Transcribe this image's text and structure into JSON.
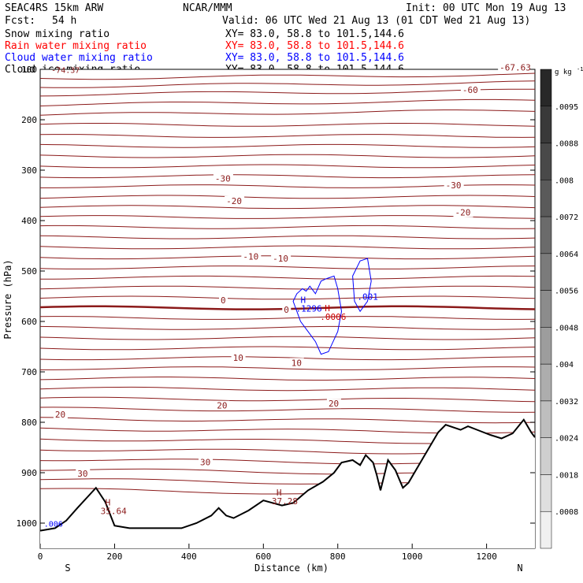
{
  "header": {
    "model": "SEAC4RS 15km ARW",
    "org": "NCAR/MMM",
    "init": "Init: 00 UTC Mon 19 Aug 13",
    "fcst_label": "Fcst:",
    "fcst_value": "54 h",
    "valid": "Valid: 06 UTC Wed 21 Aug 13 (01 CDT Wed 21 Aug 13)"
  },
  "fields": [
    {
      "name": "Snow mixing ratio",
      "xy": "XY=  83.0, 58.8 to 101.5,144.6",
      "color": "#000000"
    },
    {
      "name": "Rain water mixing ratio",
      "xy": "XY=  83.0, 58.8 to 101.5,144.6",
      "color": "#ff0000"
    },
    {
      "name": "Cloud water mixing ratio",
      "xy": "XY=  83.0, 58.8 to 101.5,144.6",
      "color": "#0000ff"
    },
    {
      "name": "Cloud ice mixing ratio",
      "xy": "XY=  83.0, 58.8 to 101.5,144.6",
      "color": "#000000"
    }
  ],
  "chart_data": {
    "type": "contour",
    "xlabel": "Distance (km)",
    "ylabel": "Pressure (hPa)",
    "xlim": [
      0,
      1330
    ],
    "ylim": [
      1050,
      100
    ],
    "x_ticks": [
      0,
      200,
      400,
      600,
      800,
      1000,
      1200
    ],
    "y_ticks": [
      100,
      200,
      300,
      400,
      500,
      600,
      700,
      800,
      900,
      1000
    ],
    "y_tick_labels": [
      "100",
      "200",
      "300",
      "400",
      "500",
      "600",
      "700",
      "800",
      "900",
      "1000"
    ],
    "end_labels": {
      "left": "S",
      "right": "N"
    },
    "temperature_contours": {
      "color": "#8b1a1a",
      "levels_hPa_at_left": [
        118,
        134,
        150,
        170,
        190,
        210,
        232,
        252,
        272,
        292,
        312,
        332,
        353,
        373,
        393,
        413,
        433,
        453,
        473,
        493,
        513,
        533,
        553,
        573,
        593,
        613,
        633,
        653,
        673,
        693,
        713,
        733,
        753,
        773,
        793,
        813,
        833,
        853,
        873,
        893,
        913,
        933
      ],
      "freezing_level_hPa": 573,
      "labels": [
        {
          "text": "-67.63",
          "x_km": 1235,
          "p": 102
        },
        {
          "text": "-60",
          "x_km": 1135,
          "p": 147
        },
        {
          "text": "-30",
          "x_km": 470,
          "p": 323
        },
        {
          "text": "-30",
          "x_km": 1090,
          "p": 336
        },
        {
          "text": "-20",
          "x_km": 500,
          "p": 367
        },
        {
          "text": "-20",
          "x_km": 1115,
          "p": 390
        },
        {
          "text": "-10",
          "x_km": 545,
          "p": 477
        },
        {
          "text": "-10",
          "x_km": 625,
          "p": 481
        },
        {
          "text": "0",
          "x_km": 485,
          "p": 564
        },
        {
          "text": "0",
          "x_km": 655,
          "p": 583
        },
        {
          "text": "10",
          "x_km": 518,
          "p": 678
        },
        {
          "text": "10",
          "x_km": 675,
          "p": 688
        },
        {
          "text": "20",
          "x_km": 40,
          "p": 791
        },
        {
          "text": "20",
          "x_km": 475,
          "p": 773
        },
        {
          "text": "20",
          "x_km": 775,
          "p": 769
        },
        {
          "text": "30",
          "x_km": 100,
          "p": 908
        },
        {
          "text": "30",
          "x_km": 430,
          "p": 885
        }
      ]
    },
    "maxima": [
      {
        "text": "H",
        "value": "35.64",
        "x_km": 175,
        "p": 965,
        "color": "#8b1a1a"
      },
      {
        "text": "H",
        "value": "37.28",
        "x_km": 635,
        "p": 945,
        "color": "#8b1a1a"
      },
      {
        "text": "H",
        "value": ".1296",
        "x_km": 700,
        "p": 563,
        "color": "#0000ff"
      },
      {
        "text": "H",
        "value": ".0006",
        "x_km": 765,
        "p": 580,
        "color": "#cc0000"
      },
      {
        "text": "",
        "value": ".001",
        "x_km": 865,
        "p": 540,
        "color": "#0000ff"
      }
    ],
    "edge_labels": [
      {
        "text": "-74.37",
        "x_km": 30,
        "p": 107,
        "color": "#8b1a1a"
      },
      {
        "text": ".006",
        "x_km": 10,
        "p": 1007,
        "color": "#0000ff"
      }
    ],
    "terrain": [
      [
        0,
        1015
      ],
      [
        40,
        1010
      ],
      [
        70,
        995
      ],
      [
        100,
        970
      ],
      [
        125,
        950
      ],
      [
        150,
        930
      ],
      [
        175,
        958
      ],
      [
        200,
        1005
      ],
      [
        240,
        1010
      ],
      [
        300,
        1010
      ],
      [
        380,
        1010
      ],
      [
        420,
        1000
      ],
      [
        460,
        985
      ],
      [
        480,
        970
      ],
      [
        500,
        985
      ],
      [
        520,
        990
      ],
      [
        560,
        975
      ],
      [
        600,
        955
      ],
      [
        650,
        965
      ],
      [
        680,
        960
      ],
      [
        720,
        935
      ],
      [
        760,
        918
      ],
      [
        790,
        900
      ],
      [
        810,
        880
      ],
      [
        840,
        875
      ],
      [
        860,
        885
      ],
      [
        875,
        865
      ],
      [
        895,
        880
      ],
      [
        905,
        905
      ],
      [
        915,
        935
      ],
      [
        935,
        875
      ],
      [
        955,
        895
      ],
      [
        975,
        930
      ],
      [
        990,
        920
      ],
      [
        1030,
        870
      ],
      [
        1070,
        820
      ],
      [
        1090,
        805
      ],
      [
        1130,
        815
      ],
      [
        1150,
        808
      ],
      [
        1185,
        818
      ],
      [
        1210,
        825
      ],
      [
        1240,
        832
      ],
      [
        1270,
        822
      ],
      [
        1300,
        795
      ],
      [
        1320,
        820
      ],
      [
        1330,
        830
      ]
    ],
    "colorbar": {
      "unit": "g kg",
      "unit_exp": "-1",
      "labels": [
        ".0095",
        ".0088",
        ".008",
        ".0072",
        ".0064",
        ".0056",
        ".0048",
        ".004",
        ".0032",
        ".0024",
        ".0018",
        ".0008"
      ]
    }
  }
}
